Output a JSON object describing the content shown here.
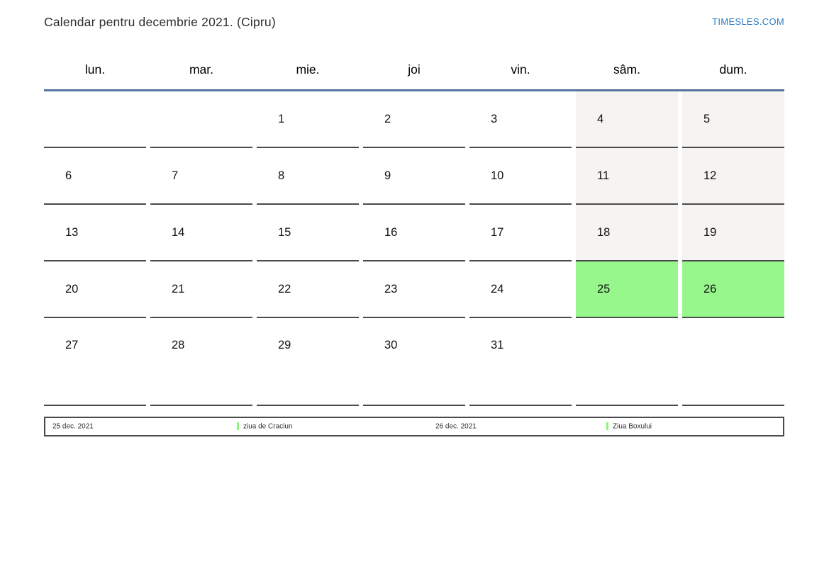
{
  "page": {
    "title": "Calendar pentru decembrie 2021. (Cipru)",
    "brand": "TIMESLES.COM"
  },
  "calendar": {
    "month": "decembrie",
    "year": "2021",
    "region": "Cipru",
    "weekday_headers": [
      "lun.",
      "mar.",
      "mie.",
      "joi",
      "vin.",
      "sâm.",
      "dum."
    ],
    "weeks": [
      [
        "",
        "",
        "1",
        "2",
        "3",
        "4",
        "5"
      ],
      [
        "6",
        "7",
        "8",
        "9",
        "10",
        "11",
        "12"
      ],
      [
        "13",
        "14",
        "15",
        "16",
        "17",
        "18",
        "19"
      ],
      [
        "20",
        "21",
        "22",
        "23",
        "24",
        "25",
        "26"
      ],
      [
        "27",
        "28",
        "29",
        "30",
        "31",
        "",
        ""
      ]
    ],
    "highlighted_days": [
      "25",
      "26"
    ]
  },
  "legend": [
    {
      "date": "25 dec. 2021",
      "name": "ziua de Craciun"
    },
    {
      "date": "26 dec. 2021",
      "name": "Ziua Boxului"
    }
  ],
  "colors": {
    "brand_blue": "#2a7ac0",
    "header_line": "#54749e",
    "weekend_bg": "#f5f4f3",
    "holiday_green": "#97f78c",
    "legend_marker_green": "#8cf573",
    "cell_border": "#4a4a4a"
  }
}
